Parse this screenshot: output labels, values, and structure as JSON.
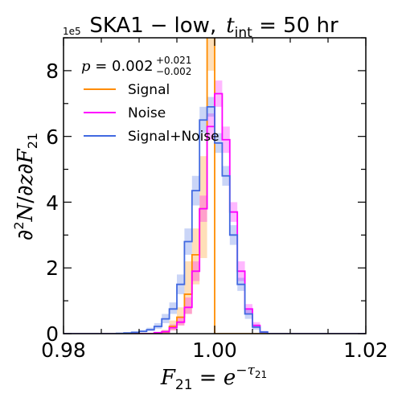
{
  "chart_data": {
    "type": "line",
    "subtype": "step-histogram",
    "title_parts": {
      "lead": "SKA1",
      "minus": "−",
      "tail": "low,",
      "t": "t",
      "sub": "int",
      "eq": " = 50 hr"
    },
    "xlabel_parts": {
      "F": "F",
      "sub": "21",
      "eq": " = ",
      "e": "e",
      "sup": "−τ",
      "supsub": "21"
    },
    "ylabel_parts": {
      "d1": "∂",
      "exp": "2",
      "N": "N",
      "slash": "/∂",
      "z": "z",
      "d2": "∂",
      "F": "F",
      "sub": "21"
    },
    "y_offset_label": "1e5",
    "xlim": [
      0.98,
      1.02
    ],
    "ylim": [
      0,
      9
    ],
    "x_ticks": [
      "0.98",
      "1.00",
      "1.02"
    ],
    "x_tick_values": [
      0.98,
      1.0,
      1.02
    ],
    "y_ticks": [
      "0",
      "2",
      "4",
      "6",
      "8"
    ],
    "y_tick_values": [
      0,
      2,
      4,
      6,
      8
    ],
    "annotation": {
      "p": "p",
      "eq": " = 0.002",
      "sup": "+0.021",
      "sub": "−0.002"
    },
    "legend_position": "upper-left",
    "colors": {
      "signal": "#ff8c00",
      "noise": "#ff00ff",
      "combined": "#4169e1"
    },
    "bins": {
      "start": 0.98,
      "width": 0.001
    },
    "series": [
      {
        "name": "Signal",
        "color": "#ff8c00",
        "values": [
          0,
          0,
          0,
          0,
          0,
          0,
          0,
          0,
          0,
          0,
          0,
          0,
          0.02,
          0.05,
          0.22,
          0.5,
          1.2,
          2.4,
          3.8,
          9.4,
          0,
          0,
          0,
          0,
          0,
          0,
          0,
          0,
          0,
          0,
          0,
          0,
          0,
          0,
          0,
          0,
          0,
          0,
          0,
          0
        ],
        "lower": [
          0,
          0,
          0,
          0,
          0,
          0,
          0,
          0,
          0,
          0,
          0,
          0,
          0,
          0.02,
          0.1,
          0.25,
          0.6,
          1.5,
          2.3,
          8.0,
          0,
          0,
          0,
          0,
          0,
          0,
          0,
          0,
          0,
          0,
          0,
          0,
          0,
          0,
          0,
          0,
          0,
          0,
          0,
          0
        ],
        "upper": [
          0,
          0,
          0,
          0,
          0,
          0,
          0,
          0,
          0,
          0,
          0,
          0,
          0.05,
          0.12,
          0.4,
          0.8,
          2.2,
          3.2,
          5.4,
          9.8,
          0,
          0,
          0,
          0,
          0,
          0,
          0,
          0,
          0,
          0,
          0,
          0,
          0,
          0,
          0,
          0,
          0,
          0,
          0,
          0
        ]
      },
      {
        "name": "Noise",
        "color": "#ff00ff",
        "values": [
          0,
          0,
          0,
          0,
          0,
          0,
          0,
          0,
          0,
          0,
          0,
          0,
          0.03,
          0.06,
          0.18,
          0.35,
          0.8,
          1.9,
          3.8,
          6.3,
          7.3,
          5.9,
          3.7,
          1.9,
          0.75,
          0.25,
          0.05,
          0,
          0,
          0,
          0,
          0,
          0,
          0,
          0,
          0,
          0,
          0,
          0,
          0
        ],
        "lower": [
          0,
          0,
          0,
          0,
          0,
          0,
          0,
          0,
          0,
          0,
          0,
          0,
          0.01,
          0.03,
          0.1,
          0.25,
          0.6,
          1.6,
          3.4,
          5.9,
          6.9,
          5.5,
          3.4,
          1.6,
          0.6,
          0.18,
          0.02,
          0,
          0,
          0,
          0,
          0,
          0,
          0,
          0,
          0,
          0,
          0,
          0,
          0
        ],
        "upper": [
          0,
          0,
          0,
          0,
          0,
          0,
          0,
          0,
          0,
          0,
          0,
          0,
          0.05,
          0.1,
          0.28,
          0.5,
          1.1,
          2.2,
          4.2,
          6.7,
          7.7,
          6.3,
          4.0,
          2.2,
          0.9,
          0.35,
          0.08,
          0,
          0,
          0,
          0,
          0,
          0,
          0,
          0,
          0,
          0,
          0,
          0,
          0
        ]
      },
      {
        "name": "Signal+Noise",
        "color": "#4169e1",
        "values": [
          0,
          0,
          0,
          0,
          0,
          0,
          0,
          0.01,
          0.02,
          0.04,
          0.07,
          0.12,
          0.22,
          0.45,
          0.75,
          1.5,
          2.8,
          4.35,
          6.5,
          6.9,
          5.8,
          4.8,
          3.0,
          1.5,
          0.6,
          0.2,
          0.05,
          0,
          0,
          0,
          0,
          0,
          0,
          0,
          0,
          0,
          0,
          0,
          0,
          0
        ],
        "lower": [
          0,
          0,
          0,
          0,
          0,
          0,
          0,
          0,
          0.01,
          0.02,
          0.04,
          0.08,
          0.15,
          0.32,
          0.6,
          1.2,
          2.4,
          3.9,
          6.1,
          6.6,
          5.5,
          4.5,
          2.7,
          1.3,
          0.45,
          0.12,
          0.02,
          0,
          0,
          0,
          0,
          0,
          0,
          0,
          0,
          0,
          0,
          0,
          0,
          0
        ],
        "upper": [
          0,
          0,
          0,
          0,
          0,
          0,
          0,
          0.02,
          0.04,
          0.07,
          0.11,
          0.18,
          0.32,
          0.6,
          0.95,
          1.8,
          3.2,
          4.8,
          6.9,
          7.2,
          6.1,
          5.1,
          3.3,
          1.7,
          0.75,
          0.28,
          0.08,
          0,
          0,
          0,
          0,
          0,
          0,
          0,
          0,
          0,
          0,
          0,
          0,
          0
        ]
      }
    ]
  }
}
